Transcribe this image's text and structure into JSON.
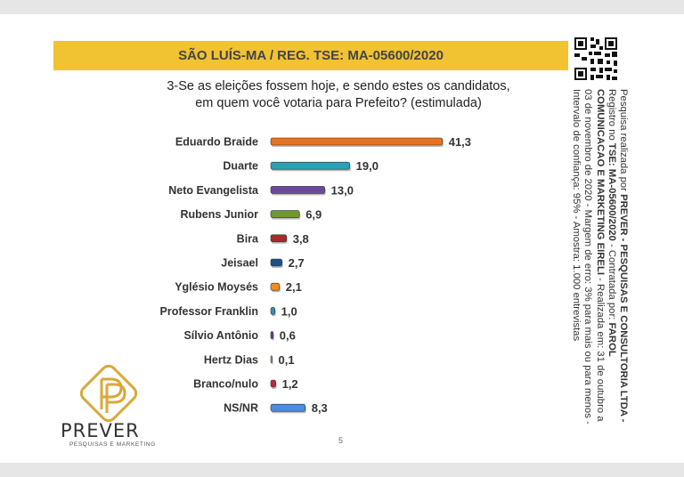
{
  "header": {
    "title": "SÃO LUÍS-MA / REG. TSE: MA-05600/2020"
  },
  "question": {
    "line1": "3-Se as eleições fossem hoje, e sendo estes os candidatos,",
    "line2": "em quem você votaria para Prefeito? (estimulada)"
  },
  "chart_data": {
    "type": "bar",
    "orientation": "horizontal",
    "categories": [
      "Eduardo Braide",
      "Duarte",
      "Neto Evangelista",
      "Rubens Junior",
      "Bira",
      "Jeisael",
      "Yglésio  Moysés",
      "Professor Franklin",
      "Sílvio Antônio",
      "Hertz Dias",
      "Branco/nulo",
      "NS/NR"
    ],
    "values": [
      41.3,
      19.0,
      13.0,
      6.9,
      3.8,
      2.7,
      2.1,
      1.0,
      0.6,
      0.1,
      1.2,
      8.3
    ],
    "value_labels": [
      "41,3",
      "19,0",
      "13,0",
      "6,9",
      "3,8",
      "2,7",
      "2,1",
      "1,0",
      "0,6",
      "0,1",
      "1,2",
      "8,3"
    ],
    "colors": [
      "#e8731f",
      "#2aa0b4",
      "#6b4a9c",
      "#6f9a2b",
      "#a62b2b",
      "#1f4f8a",
      "#ef8c22",
      "#2b8fbd",
      "#6a3f8e",
      "#9bbf4f",
      "#b32d3a",
      "#4a8ee0"
    ],
    "xlim": [
      0,
      45
    ],
    "grid": false,
    "legend": "none"
  },
  "sidebar": {
    "line1_pre": "Pesquisa realizada por ",
    "line1_bold": "PREVER - PESQUISAS E CONSULTORIA LTDA -",
    "line2_pre": "Registro no ",
    "line2_bold": "TSE: MA-05600/2020",
    "line2_post": " - Contratada por: ",
    "line2_bold2": "FAROL",
    "line3_bold": "COMUNICACAO E MARKETING EIRELI",
    "line3_post": " - Realizada em: 31 de outubro a",
    "line4": "03 de novembro de 2020 - Margem de erro: 3% para mais ou para menos -",
    "line5": "Intervalo de confiança: 95% - Amostra: 1.000 entrevistas"
  },
  "logo": {
    "word": "PREVER",
    "sub": "PESQUISAS E MARKETING"
  },
  "page_number": "5",
  "qr_icon": "qr-code-icon"
}
